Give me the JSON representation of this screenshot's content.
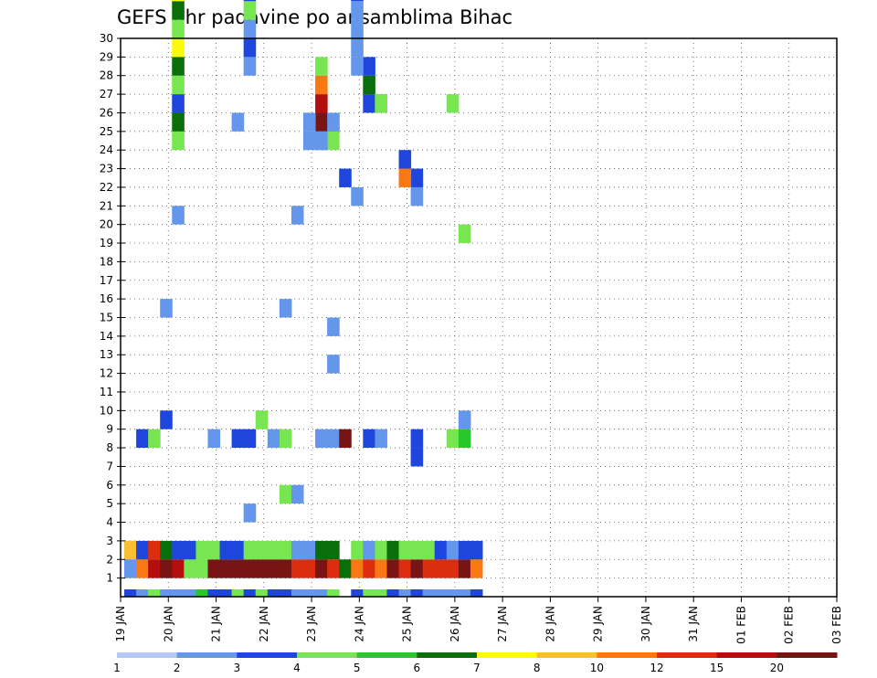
{
  "chart_data": {
    "type": "heatmap",
    "title": "GEFS 6hr padavine po ansamblima Bihac",
    "x_ticks": [
      "19 JAN",
      "20 JAN",
      "21 JAN",
      "22 JAN",
      "23 JAN",
      "24 JAN",
      "25 JAN",
      "26 JAN",
      "27 JAN",
      "28 JAN",
      "29 JAN",
      "30 JAN",
      "31 JAN",
      "01 FEB",
      "02 FEB",
      "03 FEB"
    ],
    "y_ticks": [
      "1",
      "2",
      "3",
      "4",
      "5",
      "6",
      "7",
      "8",
      "9",
      "10",
      "11",
      "12",
      "13",
      "14",
      "15",
      "16",
      "17",
      "18",
      "19",
      "20",
      "21",
      "22",
      "23",
      "24",
      "25",
      "26",
      "27",
      "28",
      "29",
      "30"
    ],
    "ylim": [
      0,
      30
    ],
    "grid": true,
    "colorbar": {
      "labels": [
        "1",
        "2",
        "3",
        "4",
        "5",
        "6",
        "7",
        "8",
        "10",
        "12",
        "15",
        "20"
      ],
      "colors": [
        "#b4c8f5",
        "#6496eb",
        "#1e46dc",
        "#78e650",
        "#28c828",
        "#0a6e0a",
        "#fafa0a",
        "#fabe32",
        "#fa7814",
        "#dc2d0f",
        "#b40f0f",
        "#781414"
      ]
    },
    "cells": [
      [
        0,
        0,
        2
      ],
      [
        1,
        0,
        2
      ],
      [
        2,
        0,
        4
      ],
      [
        3,
        0,
        4
      ],
      [
        0,
        1,
        6
      ],
      [
        1,
        1,
        8
      ],
      [
        2,
        1,
        10
      ],
      [
        3,
        1,
        12
      ],
      [
        4,
        1,
        10
      ],
      [
        5,
        1,
        3
      ],
      [
        6,
        1,
        3
      ],
      [
        7,
        1,
        12
      ],
      [
        8,
        1,
        12
      ],
      [
        9,
        1,
        11
      ],
      [
        10,
        1,
        12
      ],
      [
        11,
        1,
        12
      ],
      [
        12,
        1,
        11
      ],
      [
        13,
        1,
        12
      ],
      [
        14,
        1,
        9
      ],
      [
        15,
        1,
        9
      ],
      [
        16,
        1,
        11
      ],
      [
        17,
        1,
        9
      ],
      [
        18,
        1,
        5
      ],
      [
        19,
        1,
        8
      ],
      [
        20,
        1,
        9
      ],
      [
        21,
        1,
        8
      ],
      [
        22,
        1,
        11
      ],
      [
        23,
        1,
        9
      ],
      [
        24,
        1,
        11
      ],
      [
        25,
        1,
        9
      ],
      [
        26,
        1,
        9
      ],
      [
        27,
        1,
        9
      ],
      [
        28,
        1,
        11
      ],
      [
        29,
        1,
        8
      ],
      [
        0,
        2,
        7
      ],
      [
        1,
        2,
        2
      ],
      [
        2,
        2,
        9
      ],
      [
        3,
        2,
        5
      ],
      [
        4,
        2,
        2
      ],
      [
        5,
        2,
        2
      ],
      [
        6,
        2,
        3
      ],
      [
        7,
        2,
        3
      ],
      [
        8,
        2,
        2
      ],
      [
        9,
        2,
        2
      ],
      [
        10,
        2,
        3
      ],
      [
        11,
        2,
        3
      ],
      [
        12,
        2,
        3
      ],
      [
        13,
        2,
        3
      ],
      [
        14,
        2,
        1
      ],
      [
        15,
        2,
        1
      ],
      [
        16,
        2,
        5
      ],
      [
        17,
        2,
        5
      ],
      [
        19,
        2,
        3
      ],
      [
        20,
        2,
        1
      ],
      [
        21,
        2,
        3
      ],
      [
        22,
        2,
        5
      ],
      [
        23,
        2,
        3
      ],
      [
        24,
        2,
        3
      ],
      [
        25,
        2,
        3
      ],
      [
        26,
        2,
        2
      ],
      [
        27,
        2,
        1
      ],
      [
        28,
        2,
        2
      ],
      [
        29,
        2,
        2
      ],
      [
        0,
        1,
        1
      ],
      [
        1,
        0,
        1
      ],
      [
        2,
        0,
        3
      ],
      [
        3,
        0,
        1
      ],
      [
        4,
        0,
        1
      ],
      [
        5,
        0,
        1
      ],
      [
        6,
        0,
        4
      ],
      [
        7,
        0,
        2
      ],
      [
        8,
        0,
        2
      ],
      [
        9,
        0,
        3
      ],
      [
        10,
        0,
        2
      ],
      [
        11,
        0,
        3
      ],
      [
        12,
        0,
        2
      ],
      [
        13,
        0,
        2
      ],
      [
        14,
        0,
        1
      ],
      [
        15,
        0,
        1
      ],
      [
        16,
        0,
        1
      ],
      [
        17,
        0,
        3
      ],
      [
        19,
        0,
        2
      ],
      [
        20,
        0,
        3
      ],
      [
        21,
        0,
        3
      ],
      [
        22,
        0,
        2
      ],
      [
        23,
        0,
        1
      ],
      [
        24,
        0,
        2
      ],
      [
        25,
        0,
        1
      ],
      [
        26,
        0,
        1
      ],
      [
        27,
        0,
        1
      ],
      [
        28,
        0,
        1
      ],
      [
        29,
        0,
        2
      ],
      [
        1,
        8,
        2
      ],
      [
        2,
        8,
        3
      ],
      [
        3,
        9,
        2
      ],
      [
        7,
        8,
        1
      ],
      [
        9,
        8,
        2
      ],
      [
        10,
        8,
        2
      ],
      [
        11,
        9,
        3
      ],
      [
        12,
        8,
        1
      ],
      [
        13,
        8,
        3
      ],
      [
        16,
        8,
        1
      ],
      [
        17,
        8,
        1
      ],
      [
        18,
        8,
        11
      ],
      [
        20,
        8,
        2
      ],
      [
        21,
        8,
        1
      ],
      [
        24,
        7,
        2
      ],
      [
        24,
        8,
        2
      ],
      [
        27,
        8,
        3
      ],
      [
        28,
        8,
        4
      ],
      [
        28,
        9,
        1
      ],
      [
        17,
        12,
        1
      ],
      [
        24,
        21,
        1
      ],
      [
        24,
        22,
        2
      ],
      [
        18,
        22,
        2
      ],
      [
        23,
        22,
        8
      ],
      [
        23,
        23,
        2
      ],
      [
        14,
        20,
        1
      ],
      [
        28,
        19,
        3
      ],
      [
        4,
        20,
        1
      ],
      [
        19,
        21,
        1
      ],
      [
        20,
        26,
        2
      ],
      [
        21,
        26,
        1
      ],
      [
        16,
        24,
        1
      ],
      [
        17,
        24,
        3
      ],
      [
        17,
        25,
        1
      ],
      [
        16,
        25,
        11
      ],
      [
        16,
        26,
        10
      ],
      [
        16,
        27,
        8
      ],
      [
        16,
        28,
        3
      ],
      [
        15,
        25,
        1
      ],
      [
        15,
        24,
        1
      ],
      [
        16,
        24,
        1
      ],
      [
        17,
        25,
        1
      ],
      [
        4,
        24,
        3
      ],
      [
        4,
        25,
        5
      ],
      [
        4,
        26,
        2
      ],
      [
        4,
        27,
        3
      ],
      [
        4,
        28,
        5
      ],
      [
        4,
        29,
        6
      ],
      [
        4,
        30,
        3
      ],
      [
        4,
        31,
        5
      ],
      [
        4,
        32,
        6
      ],
      [
        4,
        33,
        11
      ],
      [
        4,
        34,
        3
      ],
      [
        4,
        35,
        11
      ],
      [
        4,
        36,
        9
      ],
      [
        4,
        37,
        8
      ],
      [
        4,
        38,
        1
      ],
      [
        9,
        25,
        1
      ],
      [
        21,
        26,
        3
      ],
      [
        20,
        27,
        5
      ],
      [
        20,
        28,
        2
      ],
      [
        19,
        28,
        1
      ],
      [
        19,
        29,
        1
      ],
      [
        19,
        30,
        1
      ],
      [
        19,
        31,
        1
      ],
      [
        19,
        32,
        2
      ],
      [
        19,
        33,
        5
      ],
      [
        19,
        34,
        2
      ],
      [
        10,
        28,
        1
      ],
      [
        10,
        29,
        2
      ],
      [
        10,
        30,
        1
      ],
      [
        10,
        31,
        3
      ],
      [
        10,
        32,
        2
      ],
      [
        14,
        35,
        1
      ],
      [
        14,
        36,
        1
      ],
      [
        13,
        5,
        3
      ],
      [
        14,
        5,
        1
      ],
      [
        10,
        4,
        1
      ],
      [
        27,
        26,
        3
      ],
      [
        22,
        35,
        1
      ],
      [
        1,
        35,
        1
      ],
      [
        13,
        15,
        1
      ],
      [
        3,
        15,
        1
      ],
      [
        17,
        14,
        1
      ]
    ]
  }
}
